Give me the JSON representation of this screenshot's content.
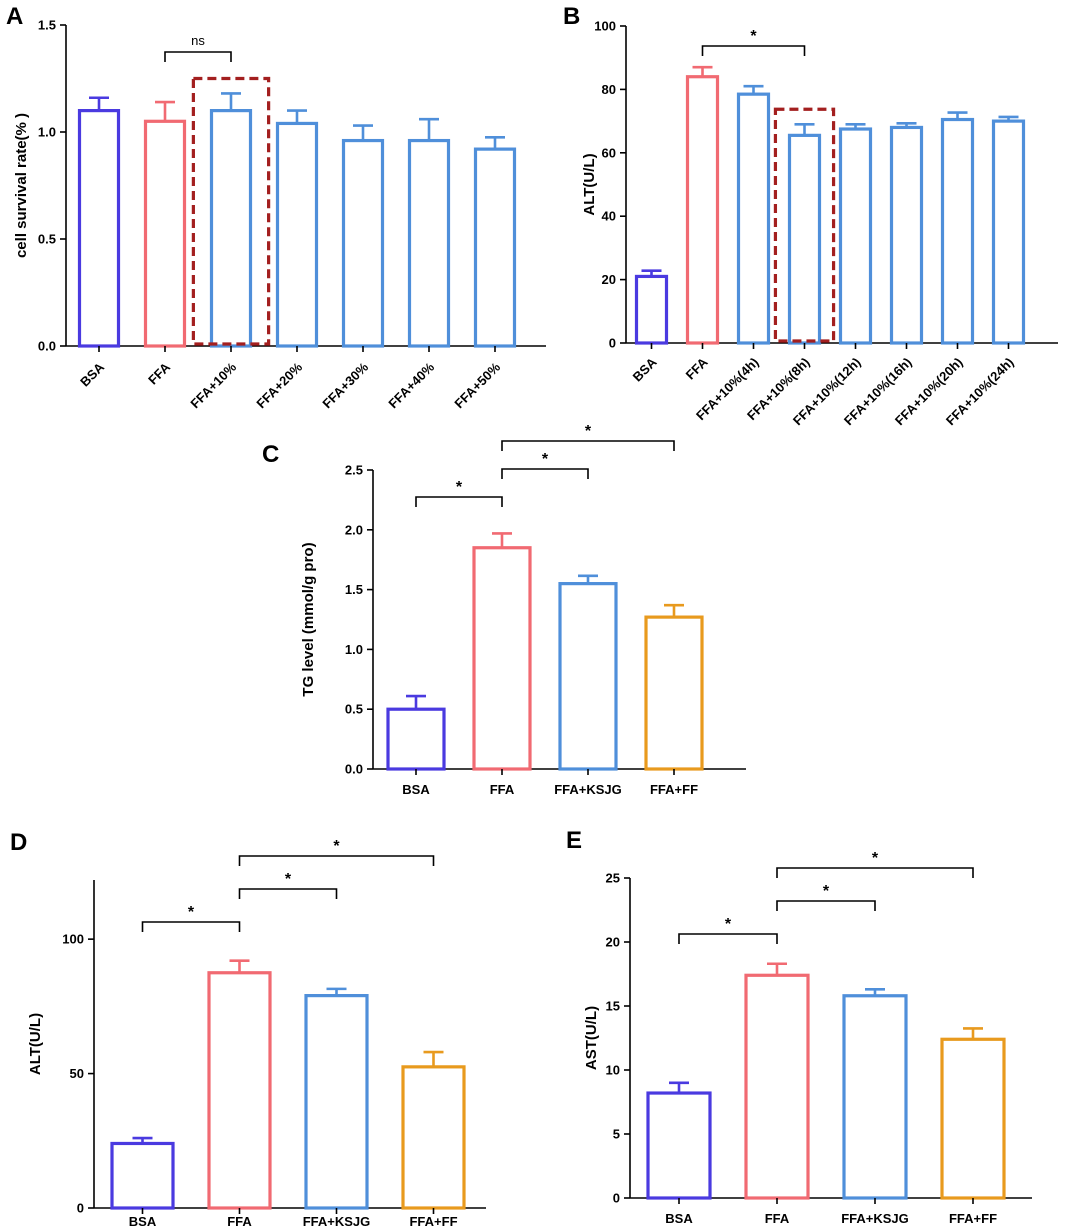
{
  "colors": {
    "BSA": "#4a3ae0",
    "FFA": "#f16a72",
    "treatment": "#4f8fda",
    "FF": "#e89a1e",
    "highlight_box": "#a31f1f"
  },
  "chart_data": [
    {
      "panel": "A",
      "type": "bar",
      "ylabel": "cell survival rate(% )",
      "ylim": [
        0,
        1.5
      ],
      "yticks": [
        "0.0",
        "0.5",
        "1.0",
        "1.5"
      ],
      "categories": [
        "BSA",
        "FFA",
        "FFA+10%",
        "FFA+20%",
        "FFA+30%",
        "FFA+40%",
        "FFA+50%"
      ],
      "values": [
        1.1,
        1.05,
        1.1,
        1.04,
        0.96,
        0.96,
        0.92
      ],
      "errors": [
        0.06,
        0.09,
        0.08,
        0.06,
        0.07,
        0.1,
        0.055
      ],
      "bar_colors": [
        "BSA",
        "FFA",
        "treatment",
        "treatment",
        "treatment",
        "treatment",
        "treatment"
      ],
      "significance": [
        {
          "from": 1,
          "to": 2,
          "label": "ns"
        }
      ],
      "highlight_index": 2
    },
    {
      "panel": "B",
      "type": "bar",
      "ylabel": "ALT(U/L)",
      "ylim": [
        0,
        100
      ],
      "yticks": [
        "0",
        "20",
        "40",
        "60",
        "80",
        "100"
      ],
      "categories": [
        "BSA",
        "FFA",
        "FFA+10%(4h)",
        "FFA+10%(8h)",
        "FFA+10%(12h)",
        "FFA+10%(16h)",
        "FFA+10%(20h)",
        "FFA+10%(24h)"
      ],
      "values": [
        21,
        84,
        78.5,
        65.5,
        67.5,
        68,
        70.5,
        70
      ],
      "errors": [
        1.8,
        3,
        2.5,
        3.5,
        1.5,
        1.3,
        2.2,
        1.3
      ],
      "bar_colors": [
        "BSA",
        "FFA",
        "treatment",
        "treatment",
        "treatment",
        "treatment",
        "treatment",
        "treatment"
      ],
      "significance": [
        {
          "from": 1,
          "to": 3,
          "label": "*"
        }
      ],
      "highlight_index": 3
    },
    {
      "panel": "C",
      "type": "bar",
      "ylabel": "TG level (mmol/g pro)",
      "ylim": [
        0,
        2.5
      ],
      "yticks": [
        "0.0",
        "0.5",
        "1.0",
        "1.5",
        "2.0",
        "2.5"
      ],
      "categories": [
        "BSA",
        "FFA",
        "FFA+KSJG",
        "FFA+FF"
      ],
      "values": [
        0.5,
        1.85,
        1.55,
        1.27
      ],
      "errors": [
        0.11,
        0.12,
        0.065,
        0.1
      ],
      "bar_colors": [
        "BSA",
        "FFA",
        "treatment",
        "FF"
      ],
      "significance": [
        {
          "from": 0,
          "to": 1,
          "label": "*"
        },
        {
          "from": 1,
          "to": 2,
          "label": "*"
        },
        {
          "from": 1,
          "to": 3,
          "label": "*"
        }
      ]
    },
    {
      "panel": "D",
      "type": "bar",
      "ylabel": "ALT(U/L)",
      "ylim": [
        0,
        122
      ],
      "yticks": [
        "0",
        "50",
        "100"
      ],
      "yticks_values": [
        0,
        50,
        100
      ],
      "categories": [
        "BSA",
        "FFA",
        "FFA+KSJG",
        "FFA+FF"
      ],
      "values": [
        24,
        87.5,
        79,
        52.5
      ],
      "errors": [
        2,
        4.5,
        2.5,
        5.5
      ],
      "bar_colors": [
        "BSA",
        "FFA",
        "treatment",
        "FF"
      ],
      "significance": [
        {
          "from": 0,
          "to": 1,
          "label": "*"
        },
        {
          "from": 1,
          "to": 2,
          "label": "*"
        },
        {
          "from": 1,
          "to": 3,
          "label": "*"
        }
      ]
    },
    {
      "panel": "E",
      "type": "bar",
      "ylabel": "AST(U/L)",
      "ylim": [
        0,
        25
      ],
      "yticks": [
        "0",
        "5",
        "10",
        "15",
        "20",
        "25"
      ],
      "categories": [
        "BSA",
        "FFA",
        "FFA+KSJG",
        "FFA+FF"
      ],
      "values": [
        8.2,
        17.4,
        15.8,
        12.4
      ],
      "errors": [
        0.8,
        0.9,
        0.5,
        0.85
      ],
      "bar_colors": [
        "BSA",
        "FFA",
        "treatment",
        "FF"
      ],
      "significance": [
        {
          "from": 0,
          "to": 1,
          "label": "*"
        },
        {
          "from": 1,
          "to": 2,
          "label": "*"
        },
        {
          "from": 1,
          "to": 3,
          "label": "*"
        }
      ]
    }
  ]
}
